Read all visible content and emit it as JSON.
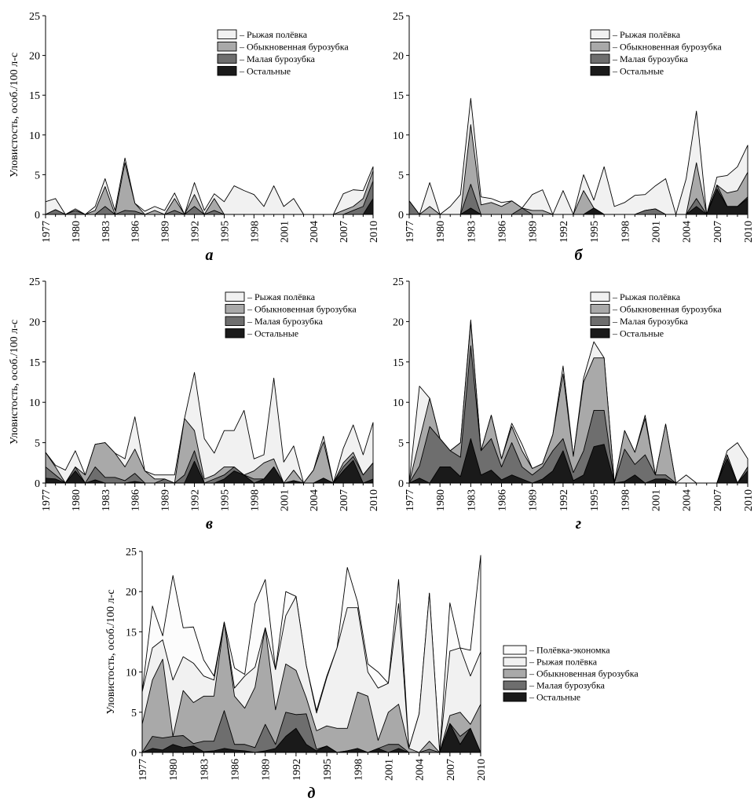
{
  "figure": {
    "ylabel": "Уловистость, особ./100 л-с"
  },
  "chart_data": [
    {
      "type": "area",
      "panel": "а",
      "ylabel": "Уловистость, особ./100 л-с",
      "xlabel": "",
      "ylim": [
        0,
        25
      ],
      "yticks": [
        0,
        5,
        10,
        15,
        20,
        25
      ],
      "xticks": [
        1977,
        1980,
        1983,
        1986,
        1989,
        1992,
        1995,
        1998,
        2001,
        2004,
        2007,
        2010
      ],
      "x": [
        1977,
        1978,
        1979,
        1980,
        1981,
        1982,
        1983,
        1984,
        1985,
        1986,
        1987,
        1988,
        1989,
        1990,
        1991,
        1992,
        1993,
        1994,
        1995,
        1996,
        1997,
        1998,
        1999,
        2000,
        2001,
        2002,
        2003,
        2004,
        2005,
        2006,
        2007,
        2008,
        2009,
        2010
      ],
      "legend_position": "top-right",
      "series": [
        {
          "name": "Остальные",
          "color": "#1a1a1a",
          "values": [
            0,
            0,
            0,
            0,
            0,
            0,
            0,
            0,
            0,
            0,
            0,
            0,
            0,
            0,
            0,
            0,
            0,
            0,
            0,
            0,
            0,
            0,
            0,
            0,
            0,
            0,
            0,
            0,
            0,
            0,
            0,
            0,
            0,
            2
          ]
        },
        {
          "name": "Малая бурозубка",
          "color": "#6e6e6e",
          "values": [
            0,
            0.6,
            0,
            0.5,
            0,
            0,
            1,
            0,
            0.5,
            0.4,
            0,
            0,
            0,
            0.5,
            0,
            1,
            0,
            0.5,
            0,
            0,
            0,
            0,
            0,
            0,
            0,
            0,
            0,
            0,
            0,
            0,
            0,
            0.5,
            1,
            2.2
          ]
        },
        {
          "name": "Обыкновенная бурозубка",
          "color": "#a9a9a9",
          "values": [
            0,
            0,
            0,
            0,
            0,
            0.5,
            2.5,
            0,
            6,
            1,
            0,
            0.5,
            0,
            1.5,
            0,
            1.5,
            0,
            1.5,
            0,
            0,
            0,
            0,
            0,
            0,
            0,
            0,
            0,
            0,
            0,
            0,
            0.5,
            0.5,
            1,
            1.3
          ]
        },
        {
          "name": "Рыжая полёвка",
          "color": "#f1f1f1",
          "values": [
            1.6,
            1.4,
            0,
            0.2,
            0,
            0.5,
            1,
            0.5,
            0.6,
            0,
            0.4,
            0.5,
            0.5,
            0.7,
            0,
            1.5,
            0.5,
            0.6,
            1.6,
            3.6,
            3,
            2.5,
            1,
            3.6,
            1,
            2,
            0,
            0,
            0,
            0,
            2.1,
            2.1,
            1,
            0.5
          ]
        }
      ]
    },
    {
      "type": "area",
      "panel": "б",
      "ylabel": "",
      "xlabel": "",
      "ylim": [
        0,
        25
      ],
      "yticks": [
        0,
        5,
        10,
        15,
        20,
        25
      ],
      "xticks": [
        1977,
        1980,
        1983,
        1986,
        1989,
        1992,
        1995,
        1998,
        2001,
        2004,
        2007,
        2010
      ],
      "x": [
        1977,
        1978,
        1979,
        1980,
        1981,
        1982,
        1983,
        1984,
        1985,
        1986,
        1987,
        1988,
        1989,
        1990,
        1991,
        1992,
        1993,
        1994,
        1995,
        1996,
        1997,
        1998,
        1999,
        2000,
        2001,
        2002,
        2003,
        2004,
        2005,
        2006,
        2007,
        2008,
        2009,
        2010
      ],
      "legend_position": "top-right",
      "series": [
        {
          "name": "Остальные",
          "color": "#1a1a1a",
          "values": [
            0,
            0,
            0,
            0,
            0,
            0,
            0.8,
            0,
            0,
            0,
            0,
            0,
            0,
            0,
            0,
            0,
            0,
            0,
            0.8,
            0,
            0,
            0,
            0,
            0,
            0,
            0,
            0,
            0,
            1,
            0,
            3.2,
            1,
            1,
            2
          ]
        },
        {
          "name": "Малая бурозубка",
          "color": "#6e6e6e",
          "values": [
            1.7,
            0,
            0,
            0,
            0,
            0,
            3,
            0,
            0,
            0,
            0,
            0.8,
            0,
            0,
            0,
            0,
            0,
            0,
            0,
            0,
            0,
            0,
            0,
            0.5,
            0.7,
            0,
            0,
            0,
            1,
            0,
            0.5,
            0,
            0,
            0.2
          ]
        },
        {
          "name": "Обыкновенная бурозубка",
          "color": "#a9a9a9",
          "values": [
            0,
            0,
            1,
            0,
            0,
            0,
            7.5,
            1.2,
            1.5,
            1,
            1.7,
            0,
            0.5,
            0.5,
            0,
            0,
            0,
            3,
            0,
            0,
            0,
            0,
            0,
            0,
            0,
            0,
            0,
            0,
            4.5,
            0,
            0,
            1.7,
            2,
            3.1
          ]
        },
        {
          "name": "Рыжая полёвка",
          "color": "#f1f1f1",
          "values": [
            0,
            0,
            3,
            0,
            1,
            2.5,
            3.3,
            1,
            0.5,
            0.5,
            0,
            0,
            2,
            2.6,
            0,
            3,
            0,
            2,
            1,
            6,
            1,
            1.5,
            2.4,
            2,
            2.9,
            4.5,
            0,
            4.5,
            6.5,
            0,
            1,
            2.2,
            3,
            3.4
          ]
        }
      ]
    },
    {
      "type": "area",
      "panel": "в",
      "ylabel": "Уловистость, особ./100 л-с",
      "xlabel": "",
      "ylim": [
        0,
        25
      ],
      "yticks": [
        0,
        5,
        10,
        15,
        20,
        25
      ],
      "xticks": [
        1977,
        1980,
        1983,
        1986,
        1989,
        1992,
        1995,
        1998,
        2001,
        2004,
        2007,
        2010
      ],
      "x": [
        1977,
        1978,
        1979,
        1980,
        1981,
        1982,
        1983,
        1984,
        1985,
        1986,
        1987,
        1988,
        1989,
        1990,
        1991,
        1992,
        1993,
        1994,
        1995,
        1996,
        1997,
        1998,
        1999,
        2000,
        2001,
        2002,
        2003,
        2004,
        2005,
        2006,
        2007,
        2008,
        2009,
        2010
      ],
      "legend_position": "top-right",
      "series": [
        {
          "name": "Остальные",
          "color": "#1a1a1a",
          "values": [
            0.6,
            0.5,
            0,
            1.5,
            0,
            0.4,
            0,
            0,
            0,
            0.2,
            0,
            0,
            0,
            0,
            0,
            2.7,
            0,
            0,
            0.5,
            1.5,
            1,
            0,
            0.5,
            2,
            0,
            0.3,
            0,
            0,
            0.6,
            0,
            1.5,
            2.8,
            0,
            0.5
          ]
        },
        {
          "name": "Малая бурозубка",
          "color": "#6e6e6e",
          "values": [
            1.4,
            0.5,
            0,
            0.5,
            0,
            1.6,
            0.7,
            0.7,
            0.3,
            1,
            0,
            0,
            0.5,
            0,
            1,
            1.3,
            0,
            0.5,
            0.5,
            0.5,
            0,
            0.5,
            0,
            0,
            0,
            0,
            0,
            0,
            0,
            0,
            0.5,
            0.5,
            1,
            2
          ]
        },
        {
          "name": "Обыкновенная бурозубка",
          "color": "#a9a9a9",
          "values": [
            1.8,
            1,
            0,
            0,
            1,
            2.8,
            4.3,
            3,
            1.7,
            3,
            1.5,
            0.5,
            0,
            0,
            7,
            2.5,
            0.5,
            0.5,
            1,
            0,
            0,
            1,
            2,
            1,
            0,
            1.3,
            0,
            1.6,
            4.5,
            0,
            0.5,
            0.5,
            0,
            0
          ]
        },
        {
          "name": "Рыжая полёвка",
          "color": "#f1f1f1",
          "values": [
            0,
            0.2,
            1.6,
            2,
            0,
            0,
            0,
            0,
            1,
            4,
            0,
            0.5,
            0.5,
            1,
            0,
            7.2,
            5,
            2.7,
            4.5,
            4.5,
            8,
            1.5,
            1,
            10,
            2.6,
            3,
            0,
            0,
            0.7,
            0,
            1.8,
            3.4,
            2.5,
            5
          ]
        }
      ]
    },
    {
      "type": "area",
      "panel": "г",
      "ylabel": "",
      "xlabel": "",
      "ylim": [
        0,
        25
      ],
      "yticks": [
        0,
        5,
        10,
        15,
        20,
        25
      ],
      "xticks": [
        1977,
        1980,
        1983,
        1986,
        1989,
        1992,
        1995,
        1998,
        2001,
        2004,
        2007,
        2010
      ],
      "x": [
        1977,
        1978,
        1979,
        1980,
        1981,
        1982,
        1983,
        1984,
        1985,
        1986,
        1987,
        1988,
        1989,
        1990,
        1991,
        1992,
        1993,
        1994,
        1995,
        1996,
        1997,
        1998,
        1999,
        2000,
        2001,
        2002,
        2003,
        2004,
        2005,
        2006,
        2007,
        2008,
        2009,
        2010
      ],
      "legend_position": "top-right",
      "series": [
        {
          "name": "Остальные",
          "color": "#1a1a1a",
          "values": [
            0,
            0.6,
            0,
            2,
            2,
            0.8,
            5.5,
            1,
            1.6,
            0.4,
            1,
            0.5,
            0,
            0.5,
            1.5,
            4,
            0.3,
            1,
            4.5,
            4.8,
            0,
            0.2,
            1,
            0,
            0.5,
            0.5,
            0,
            0,
            0,
            0,
            0,
            3,
            0,
            1.5
          ]
        },
        {
          "name": "Малая бурозубка",
          "color": "#6e6e6e",
          "values": [
            0,
            1.5,
            7,
            3.5,
            2,
            2.4,
            11.5,
            3,
            3.9,
            1.6,
            4,
            1.5,
            1,
            1.5,
            2.5,
            1.5,
            1,
            3,
            4.5,
            4.2,
            0,
            4,
            1.3,
            3.5,
            0.5,
            0.5,
            0,
            0,
            0,
            0,
            0,
            0.5,
            0,
            0.5
          ]
        },
        {
          "name": "Обыкновенная бурозубка",
          "color": "#a9a9a9",
          "values": [
            0,
            3.2,
            3.5,
            0,
            0,
            1.8,
            3,
            0,
            2.9,
            1,
            2,
            2,
            0.8,
            0.4,
            2,
            8,
            2,
            8.5,
            6.5,
            6.5,
            0,
            2.3,
            1.5,
            4.5,
            0,
            6.3,
            0,
            0,
            0,
            0,
            0,
            0,
            0,
            0
          ]
        },
        {
          "name": "Рыжая полёвка",
          "color": "#f1f1f1",
          "values": [
            0,
            6.7,
            0,
            0,
            0,
            0,
            0.2,
            0,
            0,
            0,
            0.4,
            0.8,
            0,
            0,
            0,
            1,
            0,
            0.5,
            2,
            0,
            0,
            0,
            0,
            0.4,
            0,
            0,
            0,
            1,
            0,
            0,
            0,
            0.5,
            5,
            1
          ]
        }
      ]
    },
    {
      "type": "area",
      "panel": "д",
      "ylabel": "Уловистость, особ./100 л-с",
      "xlabel": "",
      "ylim": [
        0,
        25
      ],
      "yticks": [
        0,
        5,
        10,
        15,
        20,
        25
      ],
      "xticks": [
        1977,
        1980,
        1983,
        1986,
        1989,
        1992,
        1995,
        1998,
        2001,
        2004,
        2007,
        2010
      ],
      "x": [
        1977,
        1978,
        1979,
        1980,
        1981,
        1982,
        1983,
        1984,
        1985,
        1986,
        1987,
        1988,
        1989,
        1990,
        1991,
        1992,
        1993,
        1994,
        1995,
        1996,
        1997,
        1998,
        1999,
        2000,
        2001,
        2002,
        2003,
        2004,
        2005,
        2006,
        2007,
        2008,
        2009,
        2010
      ],
      "legend_position": "right",
      "series": [
        {
          "name": "Остальные",
          "color": "#1a1a1a",
          "values": [
            0,
            0.5,
            0.3,
            1,
            0.6,
            0.8,
            0.1,
            0.2,
            0.5,
            0.3,
            0.2,
            0,
            0.2,
            0.5,
            2,
            3,
            1,
            0.2,
            0.8,
            0,
            0.2,
            0.5,
            0,
            0.5,
            0,
            0.5,
            0,
            0,
            0,
            0,
            3.6,
            1,
            3,
            0
          ]
        },
        {
          "name": "Малая бурозубка",
          "color": "#6e6e6e",
          "values": [
            0,
            1.5,
            1.5,
            1,
            1.5,
            0.3,
            1.3,
            1.2,
            4.7,
            0.7,
            0.8,
            0.6,
            3.3,
            0.5,
            3,
            1.7,
            3.8,
            0.2,
            0,
            0,
            0,
            0,
            0,
            0,
            1,
            0.5,
            0,
            0,
            0.4,
            0,
            0,
            1,
            0,
            0
          ]
        },
        {
          "name": "Обыкновенная бурозубка",
          "color": "#a9a9a9",
          "values": [
            3.5,
            7,
            9.8,
            0,
            5.6,
            5.1,
            5.6,
            5.6,
            11,
            6,
            4.5,
            7.5,
            12,
            4.3,
            6,
            5.5,
            2,
            2.3,
            2.5,
            3,
            2.8,
            7,
            7,
            1,
            4,
            5,
            0.5,
            0,
            1,
            0,
            1,
            3,
            0.5,
            6
          ]
        },
        {
          "name": "Рыжая полёвка",
          "color": "#f1f1f1",
          "values": [
            4,
            4,
            2.4,
            7,
            4.2,
            4.9,
            2.5,
            2,
            0,
            1,
            4,
            2.5,
            0,
            5,
            6,
            9.2,
            4,
            2.2,
            6,
            10,
            15,
            10.5,
            3,
            6.5,
            3.6,
            12.5,
            0,
            4.8,
            18.4,
            0,
            8,
            8,
            6,
            6.5
          ]
        },
        {
          "name": "Полёвка-экономка",
          "color": "#fcfcfc",
          "values": [
            0,
            5.2,
            0.5,
            13,
            3.6,
            4.5,
            2,
            0.5,
            0,
            2.5,
            0.2,
            7.9,
            6,
            0,
            3,
            0,
            0,
            0.3,
            0.2,
            0,
            5,
            0.7,
            1,
            2,
            0,
            3,
            0,
            0,
            0,
            0,
            6,
            0,
            3.2,
            12
          ]
        }
      ]
    }
  ]
}
